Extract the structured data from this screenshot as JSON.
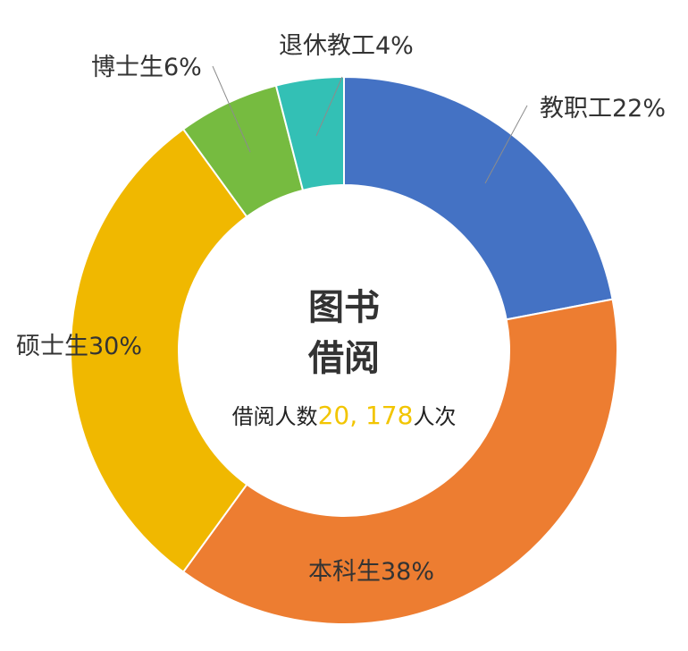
{
  "chart_data": {
    "type": "pie",
    "donut": true,
    "center_text": {
      "line1": "图书",
      "line2": "借阅",
      "caption_prefix": "借阅人数",
      "caption_value": "20, 178",
      "caption_suffix": "人次",
      "value_color": "#f2c500"
    },
    "slices": [
      {
        "label": "教职工22%",
        "value": 22,
        "color": "#4472c4"
      },
      {
        "label": "本科生38%",
        "value": 38,
        "color": "#ed7d31"
      },
      {
        "label": "硕士生30%",
        "value": 30,
        "color": "#f0b800"
      },
      {
        "label": "博士生6%",
        "value": 6,
        "color": "#76bb40"
      },
      {
        "label": "退休教工4%",
        "value": 4,
        "color": "#33c0b5"
      }
    ],
    "legend": "none"
  }
}
